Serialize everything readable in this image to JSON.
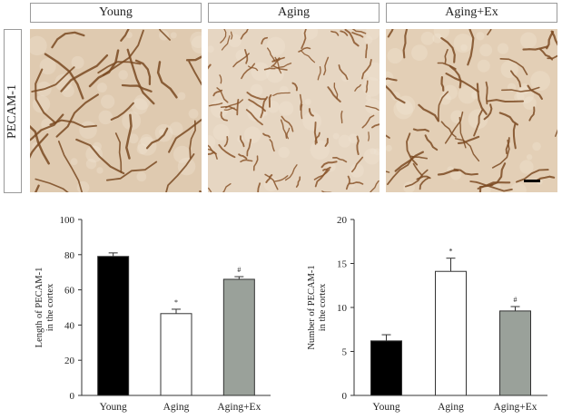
{
  "panels": {
    "columns": [
      "Young",
      "Aging",
      "Aging+Ex"
    ],
    "row_label": "PECAM-1"
  },
  "chart_data": [
    {
      "type": "bar",
      "categories": [
        "Young",
        "Aging",
        "Aging+Ex"
      ],
      "values": [
        79,
        46.5,
        66
      ],
      "errors": [
        2,
        2.5,
        1.5
      ],
      "annotations": [
        "",
        "*",
        "#"
      ],
      "ylabel": "Length of PECAM-1\nin the cortex",
      "ylim": [
        0,
        100
      ],
      "yticks": [
        0,
        20,
        40,
        60,
        80,
        100
      ],
      "colors": [
        "#000000",
        "#ffffff",
        "#9aa19a"
      ]
    },
    {
      "type": "bar",
      "categories": [
        "Young",
        "Aging",
        "Aging+Ex"
      ],
      "values": [
        6.2,
        14.1,
        9.6
      ],
      "errors": [
        0.7,
        1.5,
        0.5
      ],
      "annotations": [
        "",
        "*",
        "#"
      ],
      "ylabel": "Number of PECAM-1\nin the cortex",
      "ylim": [
        0,
        20
      ],
      "yticks": [
        0,
        5,
        10,
        15,
        20
      ],
      "colors": [
        "#000000",
        "#ffffff",
        "#9aa19a"
      ]
    }
  ]
}
